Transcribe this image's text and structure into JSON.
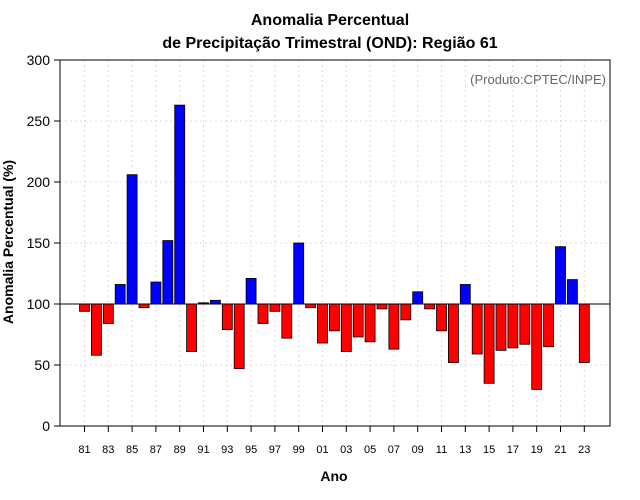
{
  "chart_data": {
    "type": "bar",
    "title_line1": "Anomalia Percentual",
    "title_line2": "de Precipitação Trimestral (OND): Região 61",
    "xlabel": "Ano",
    "ylabel": "Anomalia Percentual (%)",
    "annotation": "(Produto:CPTEC/INPE)",
    "ylim": [
      0,
      300
    ],
    "yticks": [
      "0",
      "50",
      "100",
      "150",
      "200",
      "250",
      "300"
    ],
    "baseline": 100,
    "grid": true,
    "colors": {
      "above": "#0000ff",
      "below": "#ff0000",
      "baseline": "#000000",
      "grid": "#dcdcdc"
    },
    "categories": [
      "81",
      "82",
      "83",
      "84",
      "85",
      "86",
      "87",
      "88",
      "89",
      "90",
      "91",
      "92",
      "93",
      "94",
      "95",
      "96",
      "97",
      "98",
      "99",
      "00",
      "01",
      "02",
      "03",
      "04",
      "05",
      "06",
      "07",
      "08",
      "09",
      "10",
      "11",
      "12",
      "13",
      "14",
      "15",
      "16",
      "17",
      "18",
      "19",
      "20",
      "21",
      "22",
      "23"
    ],
    "tick_labels": [
      "81",
      "83",
      "85",
      "87",
      "89",
      "91",
      "93",
      "95",
      "97",
      "99",
      "01",
      "03",
      "05",
      "07",
      "09",
      "11",
      "13",
      "15",
      "17",
      "19",
      "21",
      "23"
    ],
    "values": [
      94,
      58,
      84,
      116,
      206,
      97,
      118,
      152,
      263,
      61,
      101,
      103,
      79,
      47,
      121,
      84,
      94,
      72,
      150,
      97,
      68,
      78,
      61,
      73,
      69,
      96,
      63,
      87,
      110,
      96,
      78,
      52,
      116,
      59,
      35,
      62,
      64,
      67,
      30,
      65,
      147,
      120,
      52
    ]
  }
}
